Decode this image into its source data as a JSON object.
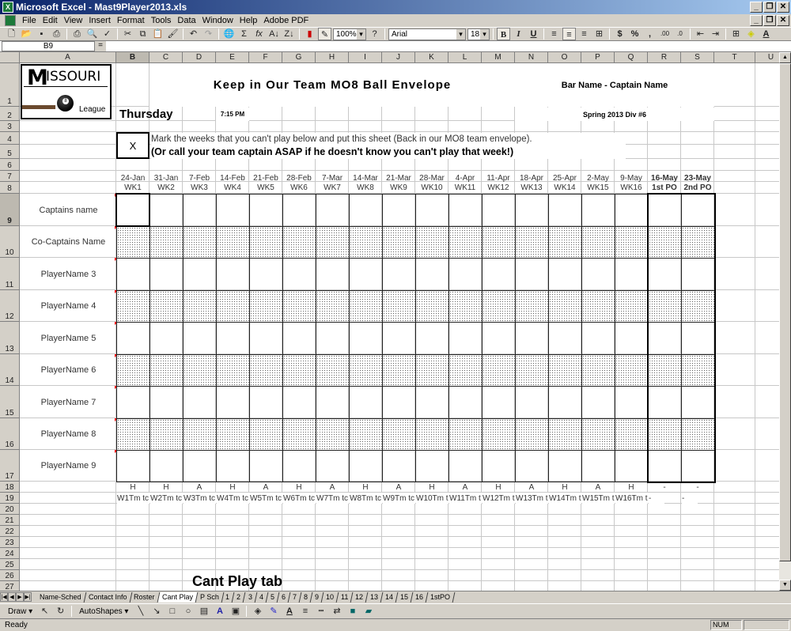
{
  "window": {
    "title": "Microsoft Excel - Mast9Player2013.xls",
    "minimize": "_",
    "restore": "❐",
    "close": "✕"
  },
  "menu": [
    "File",
    "Edit",
    "View",
    "Insert",
    "Format",
    "Tools",
    "Data",
    "Window",
    "Help",
    "Adobe PDF"
  ],
  "toolbar": {
    "zoom": "100%",
    "font": "Arial",
    "size": "18",
    "bold": "B",
    "italic": "I",
    "underline": "U",
    "currency": "$",
    "percent": "%",
    "comma": ","
  },
  "formula": {
    "name_box": "B9",
    "equals": "=",
    "value": ""
  },
  "columns": [
    "A",
    "B",
    "C",
    "D",
    "E",
    "F",
    "G",
    "H",
    "I",
    "J",
    "K",
    "L",
    "M",
    "N",
    "O",
    "P",
    "Q",
    "R",
    "S",
    "T",
    "U"
  ],
  "sheet": {
    "logo": {
      "text": "Missouri",
      "sub": "League"
    },
    "title": "Keep in Our Team MO8 Ball Envelope",
    "bar_captain": "Bar Name - Captain Name",
    "day": "Thursday",
    "time": "7:15 PM",
    "season": "Spring 2013 Div #6",
    "mark": "X",
    "instruction1": "Mark the weeks that you can't play below and put this sheet (Back in our MO8 team envelope).",
    "instruction2": "(Or call your team captain ASAP if he doesn't know you can't play that week!)",
    "dates": [
      "24-Jan",
      "31-Jan",
      "7-Feb",
      "14-Feb",
      "21-Feb",
      "28-Feb",
      "7-Mar",
      "14-Mar",
      "21-Mar",
      "28-Mar",
      "4-Apr",
      "11-Apr",
      "18-Apr",
      "25-Apr",
      "2-May",
      "9-May",
      "16-May",
      "23-May"
    ],
    "weeks": [
      "WK1",
      "WK2",
      "WK3",
      "WK4",
      "WK5",
      "WK6",
      "WK7",
      "WK8",
      "WK9",
      "WK10",
      "WK11",
      "WK12",
      "WK13",
      "WK14",
      "WK15",
      "WK16",
      "1st PO",
      "2nd PO"
    ],
    "players": [
      "Captains name",
      "Co-Captains Name",
      "PlayerName 3",
      "PlayerName 4",
      "PlayerName 5",
      "PlayerName 6",
      "PlayerName 7",
      "PlayerName 8",
      "PlayerName 9"
    ],
    "home_away": [
      "H",
      "H",
      "A",
      "H",
      "A",
      "H",
      "A",
      "H",
      "A",
      "H",
      "A",
      "H",
      "A",
      "H",
      "A",
      "H",
      "-",
      "-"
    ],
    "opponents": [
      "W1Tm tc",
      "W2Tm tc",
      "W3Tm tc",
      "W4Tm tc",
      "W5Tm tc",
      "W6Tm tc",
      "W7Tm tc",
      "W8Tm tc",
      "W9Tm tc",
      "W10Tm t",
      "W11Tm t",
      "W12Tm t",
      "W13Tm t",
      "W14Tm t",
      "W15Tm t",
      "W16Tm t",
      "-",
      "-"
    ],
    "caption": "Cant Play tab"
  },
  "tabs": [
    "Name-Sched",
    "Contact Info",
    "Roster",
    "Cant Play",
    "P Sch",
    "1",
    "2",
    "3",
    "4",
    "5",
    "6",
    "7",
    "8",
    "9",
    "10",
    "11",
    "12",
    "13",
    "14",
    "15",
    "16",
    "1stPO"
  ],
  "active_tab": "Cant Play",
  "drawbar": {
    "draw": "Draw ▾",
    "autoshapes": "AutoShapes ▾"
  },
  "status": {
    "text": "Ready",
    "num": "NUM"
  }
}
